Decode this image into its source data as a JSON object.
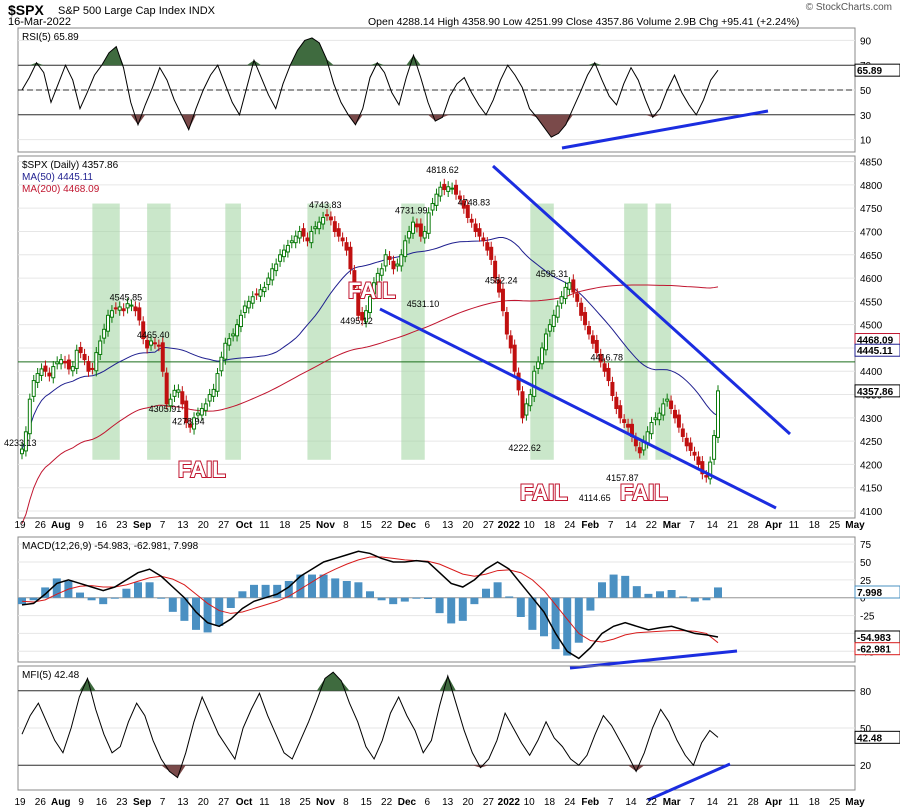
{
  "header": {
    "symbol": "$SPX",
    "name": "S&P 500 Large Cap Index",
    "exchange": "INDX",
    "date": "16-Mar-2022",
    "quote": "Open 4288.14  High 4358.90  Low 4251.99  Close 4357.86  Volume 2.9B  Chg +95.41 (+2.24%)",
    "watermark": "© StockCharts.com"
  },
  "chart_data": [
    {
      "type": "line",
      "panel": "rsi",
      "label": "RSI(5) 65.89",
      "value_label": "65.89",
      "y_ticks": [
        90,
        70,
        50,
        30,
        10
      ],
      "ylim": [
        0,
        100
      ],
      "levels": [
        70,
        50,
        30
      ],
      "colors": {
        "line": "#000000",
        "overbought": "#3f6b3f",
        "oversold": "#7a4a4a"
      },
      "values": [
        50,
        60,
        72,
        64,
        40,
        55,
        70,
        58,
        35,
        48,
        62,
        70,
        80,
        85,
        68,
        40,
        22,
        38,
        52,
        68,
        58,
        42,
        30,
        18,
        35,
        50,
        62,
        70,
        55,
        40,
        30,
        52,
        74,
        60,
        46,
        35,
        55,
        70,
        82,
        90,
        92,
        88,
        75,
        55,
        40,
        30,
        22,
        35,
        60,
        72,
        64,
        48,
        38,
        60,
        78,
        60,
        40,
        25,
        28,
        45,
        55,
        60,
        48,
        38,
        30,
        42,
        58,
        70,
        62,
        52,
        35,
        28,
        20,
        12,
        15,
        22,
        35,
        48,
        62,
        72,
        58,
        45,
        38,
        55,
        68,
        58,
        42,
        28,
        35,
        50,
        62,
        48,
        38,
        30,
        42,
        58,
        66
      ]
    },
    {
      "type": "candlestick",
      "panel": "price",
      "title": "$SPX (Daily) 4357.86",
      "last_price_label": "4357.86",
      "y_ticks": [
        4850,
        4800,
        4750,
        4700,
        4650,
        4600,
        4550,
        4500,
        4450,
        4400,
        4350,
        4300,
        4250,
        4200,
        4150,
        4100
      ],
      "ylim": [
        4085,
        4862
      ],
      "series": [
        {
          "name": "MA(50)",
          "legend": "MA(50) 4445.11",
          "value_label": "4445.11",
          "color": "#1f1f8f"
        },
        {
          "name": "MA(200)",
          "legend": "MA(200) 4468.09",
          "value_label": "4468.09",
          "color": "#c0152f"
        }
      ],
      "horizontal_line": 4420,
      "closes": [
        4233,
        4270,
        4340,
        4380,
        4395,
        4405,
        4400,
        4390,
        4410,
        4420,
        4425,
        4418,
        4405,
        4410,
        4445,
        4440,
        4425,
        4400,
        4405,
        4440,
        4465,
        4490,
        4520,
        4530,
        4535,
        4538,
        4530,
        4545,
        4542,
        4530,
        4510,
        4470,
        4450,
        4465,
        4460,
        4455,
        4400,
        4330,
        4340,
        4359,
        4360,
        4330,
        4290,
        4280,
        4300,
        4310,
        4320,
        4330,
        4350,
        4361,
        4395,
        4430,
        4460,
        4470,
        4480,
        4500,
        4520,
        4540,
        4550,
        4560,
        4565,
        4575,
        4580,
        4600,
        4620,
        4630,
        4650,
        4660,
        4670,
        4680,
        4690,
        4700,
        4690,
        4680,
        4700,
        4710,
        4720,
        4730,
        4735,
        4725,
        4700,
        4690,
        4680,
        4660,
        4620,
        4580,
        4520,
        4510,
        4530,
        4560,
        4590,
        4610,
        4620,
        4650,
        4640,
        4620,
        4630,
        4650,
        4680,
        4700,
        4720,
        4710,
        4690,
        4700,
        4740,
        4760,
        4780,
        4795,
        4790,
        4796,
        4793,
        4780,
        4770,
        4750,
        4730,
        4720,
        4700,
        4690,
        4680,
        4660,
        4640,
        4600,
        4570,
        4530,
        4480,
        4450,
        4400,
        4360,
        4300,
        4330,
        4350,
        4400,
        4420,
        4450,
        4480,
        4500,
        4520,
        4540,
        4560,
        4580,
        4590,
        4570,
        4550,
        4520,
        4500,
        4480,
        4460,
        4440,
        4420,
        4400,
        4380,
        4348,
        4320,
        4300,
        4290,
        4280,
        4260,
        4240,
        4225,
        4250,
        4270,
        4290,
        4300,
        4310,
        4330,
        4340,
        4320,
        4300,
        4280,
        4260,
        4240,
        4230,
        4220,
        4200,
        4180,
        4173,
        4205,
        4262,
        4357.86
      ],
      "labels": [
        {
          "text": "4233.13",
          "x": 0,
          "y": 4233.13
        },
        {
          "text": "4545.85",
          "x": 27,
          "y": 4545.85
        },
        {
          "text": "4465.40",
          "x": 34,
          "y": 4465.4
        },
        {
          "text": "4305.91",
          "x": 37,
          "y": 4305.91
        },
        {
          "text": "4278.94",
          "x": 43,
          "y": 4278.94
        },
        {
          "text": "4743.83",
          "x": 78,
          "y": 4743.83
        },
        {
          "text": "4495.12",
          "x": 86,
          "y": 4495.12
        },
        {
          "text": "4731.99",
          "x": 100,
          "y": 4731.99
        },
        {
          "text": "4531.10",
          "x": 103,
          "y": 4531.1
        },
        {
          "text": "4818.62",
          "x": 108,
          "y": 4818.62
        },
        {
          "text": "4748.83",
          "x": 116,
          "y": 4748.83
        },
        {
          "text": "4582.24",
          "x": 123,
          "y": 4582.24
        },
        {
          "text": "4222.62",
          "x": 129,
          "y": 4222.62
        },
        {
          "text": "4595.31",
          "x": 136,
          "y": 4595.31
        },
        {
          "text": "4416.78",
          "x": 150,
          "y": 4416.78
        },
        {
          "text": "4114.65",
          "x": 147,
          "y": 4114.65
        },
        {
          "text": "4157.87",
          "x": 154,
          "y": 4157.87
        }
      ],
      "fail_labels": [
        "FAIL",
        "FAIL",
        "FAIL",
        "FAIL"
      ],
      "colors": {
        "up": "#0a7a0a",
        "down": "#c01010",
        "highlight": "#9fd49f"
      }
    },
    {
      "type": "line",
      "panel": "macd",
      "label": "MACD(12,26,9) -54.983, -62.981, 7.998",
      "value_labels": [
        "7.998",
        "-54.983",
        "-62.981"
      ],
      "y_ticks": [
        75,
        50,
        25,
        0,
        -25,
        -50,
        -75
      ],
      "ylim": [
        -90,
        85
      ],
      "colors": {
        "macd": "#000000",
        "signal": "#d81b1b",
        "hist": "#4a90c2"
      },
      "series": [
        {
          "name": "MACD",
          "values": [
            -10,
            -8,
            5,
            20,
            25,
            20,
            15,
            10,
            15,
            25,
            35,
            40,
            30,
            15,
            0,
            -20,
            -35,
            -40,
            -30,
            -15,
            -5,
            0,
            5,
            15,
            30,
            40,
            50,
            55,
            60,
            65,
            62,
            55,
            50,
            50,
            52,
            50,
            35,
            20,
            15,
            25,
            40,
            50,
            40,
            20,
            0,
            -20,
            -50,
            -75,
            -85,
            -70,
            -50,
            -40,
            -35,
            -40,
            -45,
            -42,
            -40,
            -45,
            -50,
            -52,
            -54.983
          ]
        },
        {
          "name": "signal",
          "values": [
            -5,
            -6,
            -3,
            5,
            12,
            16,
            17,
            15,
            15,
            18,
            23,
            28,
            30,
            26,
            18,
            5,
            -8,
            -18,
            -22,
            -20,
            -15,
            -10,
            -5,
            2,
            12,
            22,
            32,
            40,
            47,
            53,
            57,
            57,
            55,
            53,
            52,
            51,
            47,
            40,
            33,
            30,
            33,
            38,
            39,
            35,
            25,
            10,
            -10,
            -30,
            -50,
            -60,
            -62,
            -58,
            -52,
            -49,
            -48,
            -47,
            -46,
            -46,
            -47,
            -50,
            -62.981
          ]
        }
      ]
    },
    {
      "type": "line",
      "panel": "mfi",
      "label": "MFI(5) 42.48",
      "value_label": "42.48",
      "y_ticks": [
        80,
        50,
        20
      ],
      "ylim": [
        0,
        100
      ],
      "levels": [
        80,
        20
      ],
      "colors": {
        "line": "#000000",
        "overbought": "#3f6b3f",
        "oversold": "#7a4a4a"
      },
      "values": [
        45,
        60,
        70,
        55,
        40,
        30,
        50,
        75,
        90,
        65,
        45,
        30,
        35,
        55,
        70,
        60,
        40,
        25,
        15,
        10,
        30,
        55,
        75,
        60,
        45,
        35,
        25,
        50,
        65,
        78,
        60,
        45,
        30,
        25,
        40,
        55,
        72,
        90,
        95,
        88,
        70,
        55,
        35,
        25,
        40,
        62,
        75,
        60,
        48,
        30,
        40,
        68,
        92,
        70,
        48,
        30,
        18,
        25,
        40,
        62,
        50,
        38,
        28,
        40,
        55,
        42,
        35,
        25,
        20,
        28,
        45,
        60,
        52,
        40,
        28,
        15,
        30,
        50,
        65,
        55,
        40,
        28,
        20,
        38,
        48,
        42.48
      ]
    }
  ],
  "x_axis": {
    "labels": [
      "19",
      "26",
      "Aug",
      "9",
      "16",
      "23",
      "Sep",
      "7",
      "13",
      "20",
      "27",
      "Oct",
      "11",
      "18",
      "25",
      "Nov",
      "8",
      "15",
      "22",
      "Dec",
      "6",
      "13",
      "20",
      "27",
      "2022",
      "10",
      "18",
      "24",
      "Feb",
      "7",
      "14",
      "22",
      "Mar",
      "7",
      "14",
      "21",
      "28",
      "Apr",
      "11",
      "18",
      "25",
      "May"
    ],
    "bold": [
      "Aug",
      "Sep",
      "Oct",
      "Nov",
      "Dec",
      "2022",
      "Feb",
      "Mar",
      "Apr",
      "May"
    ]
  }
}
